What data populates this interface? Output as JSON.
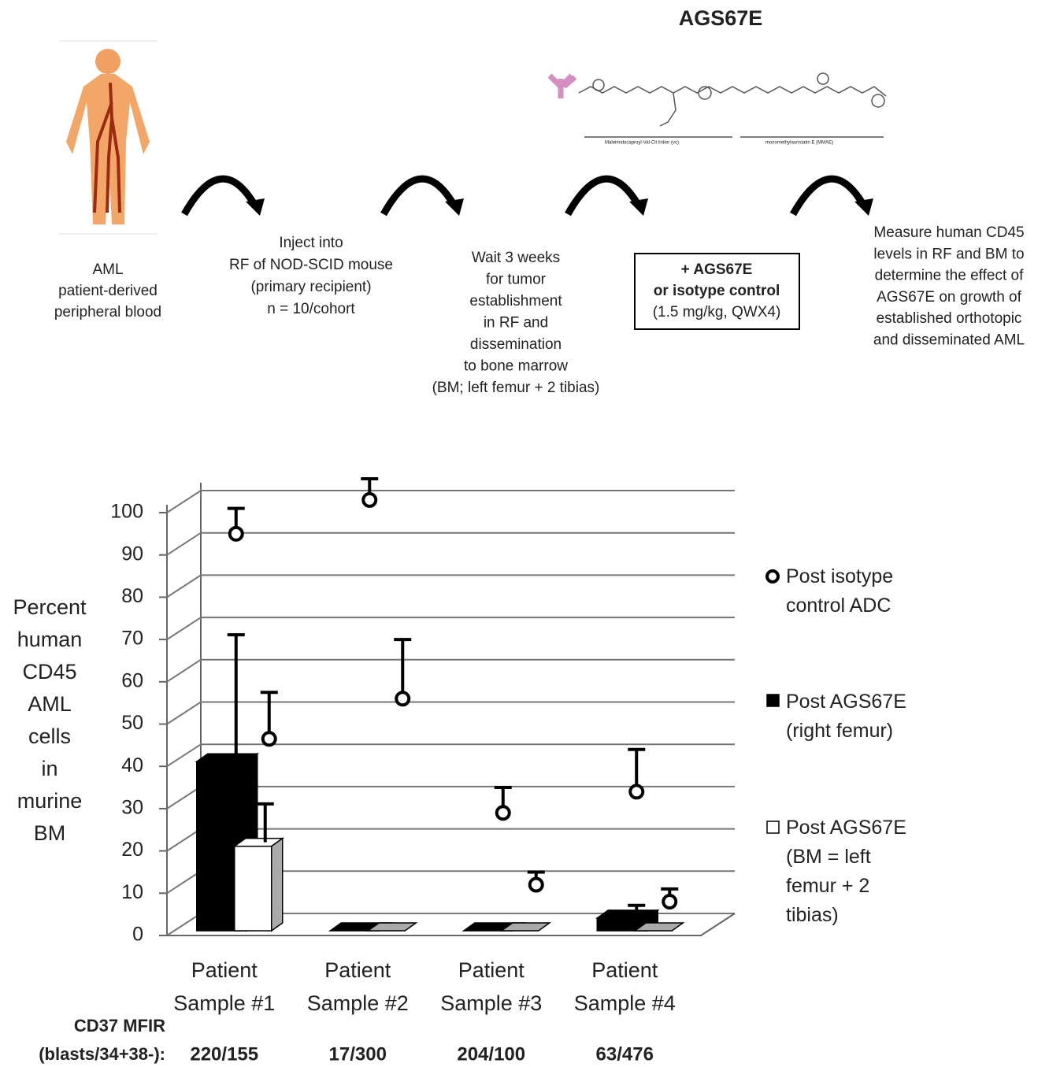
{
  "diagram": {
    "title": "AGS67E",
    "linker_label": "Maleimidocaproyl-Val-Cit linker (vc)",
    "payload_label": "monomethylauristatin E (MMAE)",
    "steps": [
      [
        "AML",
        "patient-derived",
        "peripheral blood"
      ],
      [
        "Inject into",
        "RF of NOD-SCID mouse",
        "(primary recipient)",
        "n = 10/cohort"
      ],
      [
        "Wait 3 weeks",
        "for tumor",
        "establishment",
        "in RF and",
        "dissemination",
        "to bone marrow",
        "(BM; left femur + 2 tibias)"
      ],
      [
        "+ AGS67E",
        "or isotype control",
        "(1.5 mg/kg, QWX4)"
      ],
      [
        "Measure human CD45",
        "levels in RF and BM to",
        "determine the effect of",
        "AGS67E on growth of",
        "established orthotopic",
        "and disseminated AML"
      ]
    ]
  },
  "chart_data": {
    "type": "bar",
    "ylabel": "Percent human CD45 AML cells in murine BM",
    "categories": [
      "Patient Sample #1",
      "Patient Sample #2",
      "Patient Sample #3",
      "Patient Sample #4"
    ],
    "ylim": [
      0,
      100
    ],
    "yticks": [
      0,
      10,
      20,
      30,
      40,
      50,
      60,
      70,
      80,
      90,
      100
    ],
    "grid": true,
    "series": [
      {
        "name": "Post isotype control ADC",
        "marker": "circle",
        "color": "#ffffff",
        "values": [
          [
            95,
            46.5
          ],
          [
            103,
            56
          ],
          [
            29,
            12
          ],
          [
            34,
            8
          ]
        ],
        "errors": [
          [
            6,
            11
          ],
          [
            5,
            14
          ],
          [
            6,
            3
          ],
          [
            10,
            3
          ]
        ]
      },
      {
        "name": "Post AGS67E (right femur)",
        "marker": "bar",
        "color": "#000000",
        "values": [
          40,
          0,
          0,
          3
        ],
        "errors": [
          30,
          null,
          null,
          3
        ]
      },
      {
        "name": "Post AGS67E (BM = left femur + 2 tibias)",
        "marker": "bar",
        "color": "#ffffff",
        "values": [
          20,
          0,
          0,
          0
        ],
        "errors": [
          10,
          null,
          null,
          null
        ]
      }
    ],
    "footer": {
      "label": [
        "CD37 MFIR",
        "(blasts/34+38-):"
      ],
      "values": [
        "220/155",
        "17/300",
        "204/100",
        "63/476"
      ]
    }
  }
}
